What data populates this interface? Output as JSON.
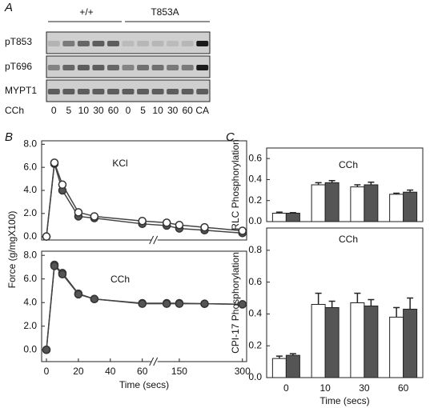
{
  "panels": [
    "A",
    "B",
    "C"
  ],
  "blot": {
    "groups": [
      "+/+",
      "T853A"
    ],
    "rows": [
      "pT853",
      "pT696",
      "MYPT1"
    ],
    "lane_title": "CCh",
    "lanes": [
      "0",
      "5",
      "10",
      "30",
      "60",
      "0",
      "5",
      "10",
      "30",
      "60",
      "CA"
    ]
  },
  "chart_data": [
    {
      "type": "line",
      "title": "KCl",
      "x": [
        0,
        5,
        10,
        20,
        30,
        60,
        120,
        150,
        210,
        300
      ],
      "xlim": [
        -3,
        310
      ],
      "xbreak": [
        65,
        100
      ],
      "ylim": [
        -0.3,
        8.3
      ],
      "yticks": [
        {
          "value": 0,
          "label": "0.0"
        },
        {
          "value": 2,
          "label": "2.0"
        },
        {
          "value": 4,
          "label": "4.0"
        },
        {
          "value": 6,
          "label": "6.0"
        },
        {
          "value": 8,
          "label": "8.0"
        }
      ],
      "series": [
        {
          "color": "#555555",
          "values": [
            0,
            6.3,
            4.0,
            1.75,
            1.6,
            1.1,
            0.95,
            0.7,
            0.55,
            0.3
          ]
        },
        {
          "color": "#ffffff",
          "values": [
            0,
            6.4,
            4.5,
            2.1,
            1.75,
            1.35,
            1.2,
            1.0,
            0.8,
            0.5
          ]
        }
      ]
    },
    {
      "type": "line",
      "title": "CCh",
      "x": [
        0,
        5,
        10,
        20,
        30,
        60,
        120,
        150,
        210,
        300
      ],
      "xlim": [
        -3,
        310
      ],
      "xbreak": [
        65,
        100
      ],
      "xticks": [
        0,
        20,
        40,
        60,
        150,
        300
      ],
      "xlabel": "Time (secs)",
      "ylabel": "Force (g/mgX100)",
      "ylim": [
        -1,
        8.35
      ],
      "yticks": [
        {
          "value": 0,
          "label": "0.0"
        },
        {
          "value": 2,
          "label": "2.0"
        },
        {
          "value": 4,
          "label": "4.0"
        },
        {
          "value": 6,
          "label": "6.0"
        },
        {
          "value": 8,
          "label": "8.0"
        }
      ],
      "series": [
        {
          "color": "#ffffff",
          "values": [
            0,
            7.2,
            6.5,
            4.75,
            4.3,
            3.95,
            3.95,
            3.95,
            3.9,
            3.85
          ]
        },
        {
          "color": "#555555",
          "values": [
            0,
            7.1,
            6.4,
            4.7,
            4.3,
            3.9,
            3.9,
            3.9,
            3.9,
            3.85
          ]
        }
      ]
    },
    {
      "type": "bar",
      "title": "CCh",
      "ylabel": "RLC Phosphorylation",
      "ylim": [
        0,
        0.7
      ],
      "yticks": [
        {
          "value": 0,
          "label": "0.0"
        },
        0.2,
        0.4,
        0.6
      ],
      "series": [
        {
          "color": "#ffffff",
          "values": [
            0.08,
            0.35,
            0.33,
            0.26
          ],
          "errors": [
            0.01,
            0.02,
            0.02,
            0.01
          ]
        },
        {
          "color": "#555555",
          "values": [
            0.08,
            0.37,
            0.35,
            0.28
          ],
          "errors": [
            0.005,
            0.02,
            0.025,
            0.02
          ]
        }
      ]
    },
    {
      "type": "bar",
      "title": "CCh",
      "categories": [
        "0",
        "10",
        "30",
        "60"
      ],
      "xlabel": "Time (secs)",
      "ylabel": "CPI-17 Phosphorylation",
      "ylim": [
        0,
        0.94
      ],
      "yticks": [
        {
          "value": 0,
          "label": "0.0"
        },
        0.2,
        0.4,
        0.6,
        0.8
      ],
      "series": [
        {
          "color": "#ffffff",
          "values": [
            0.12,
            0.46,
            0.47,
            0.38
          ],
          "errors": [
            0.015,
            0.07,
            0.06,
            0.06
          ]
        },
        {
          "color": "#555555",
          "values": [
            0.14,
            0.44,
            0.45,
            0.43
          ],
          "errors": [
            0.01,
            0.04,
            0.04,
            0.07
          ]
        }
      ]
    }
  ]
}
